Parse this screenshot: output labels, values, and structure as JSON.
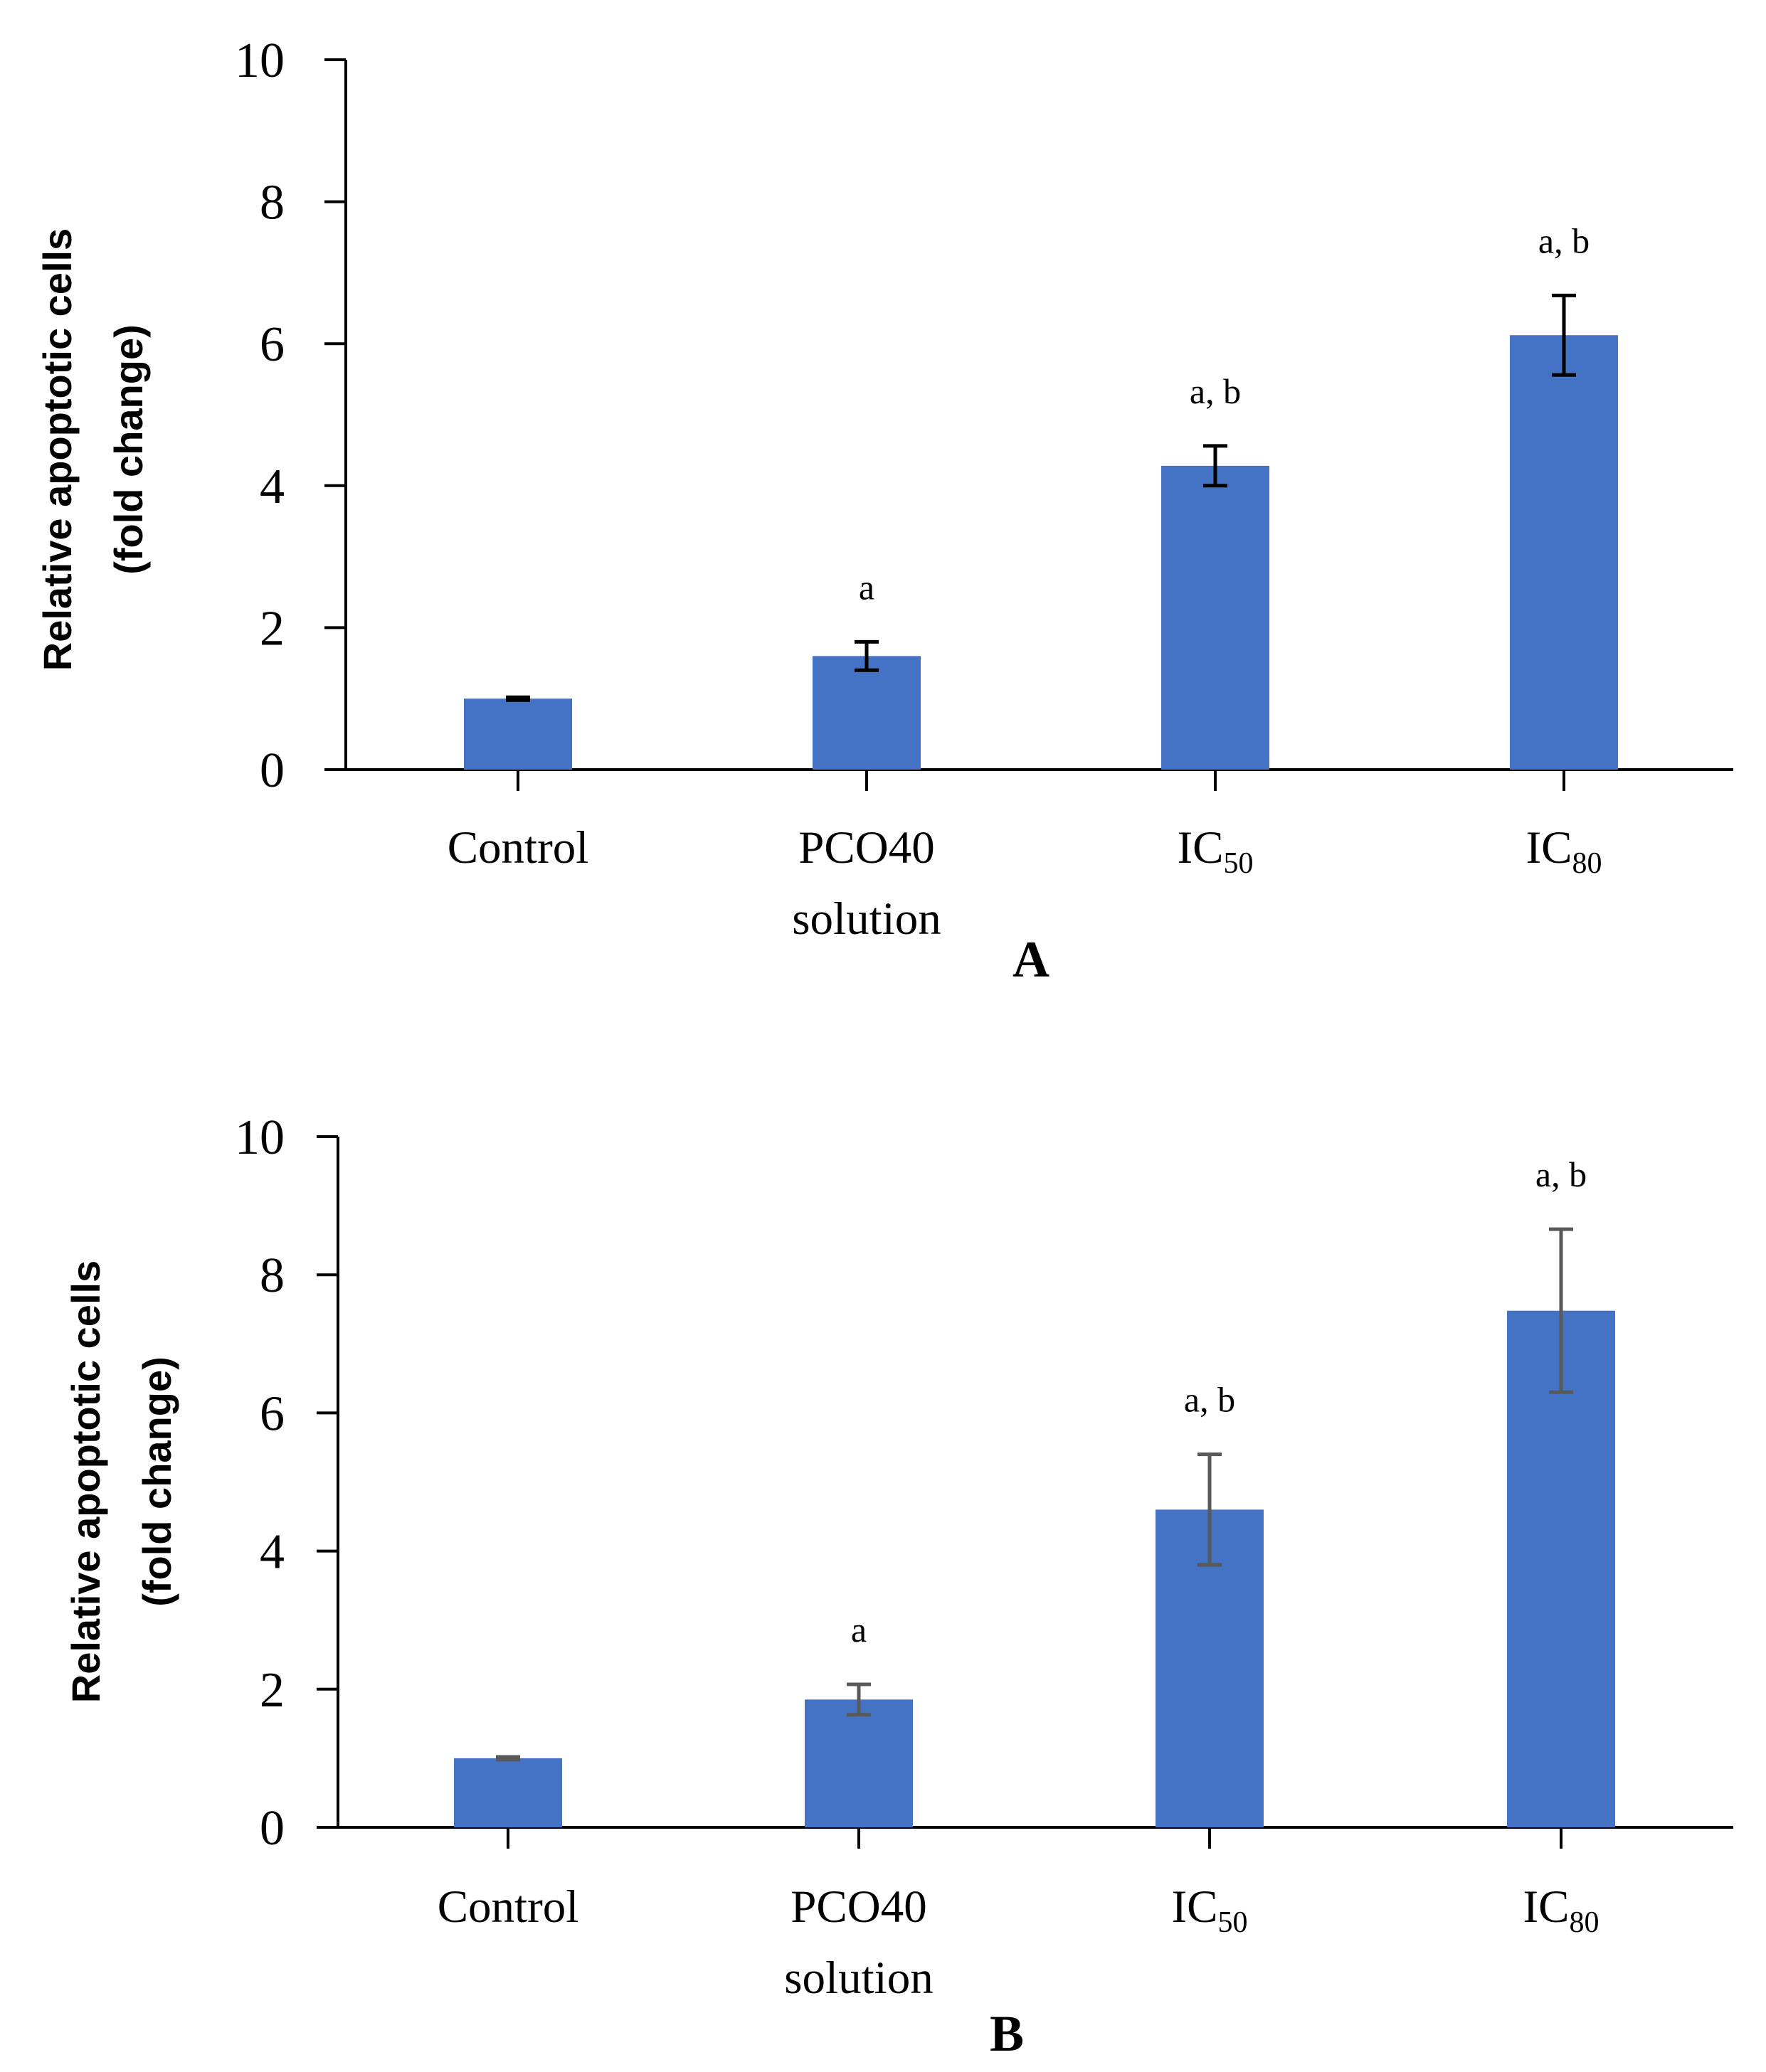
{
  "chart_data": [
    {
      "type": "bar",
      "panel_label": "A",
      "categories": [
        {
          "main": "Control",
          "sub": "",
          "line2": ""
        },
        {
          "main": "PCO40",
          "sub": "",
          "line2": "solution"
        },
        {
          "main": "IC",
          "sub": "50",
          "line2": ""
        },
        {
          "main": "IC",
          "sub": "80",
          "line2": ""
        }
      ],
      "values": [
        1.0,
        1.6,
        4.28,
        6.12
      ],
      "errors": [
        0.02,
        0.2,
        0.28,
        0.56
      ],
      "significance": [
        "",
        "a",
        "a, b",
        "a, b"
      ],
      "ylabel": [
        "Relative apoptotic cells",
        "(fold change)"
      ],
      "ylim": [
        0,
        10
      ],
      "yticks": [
        "0",
        "2",
        "4",
        "6",
        "8",
        "10"
      ],
      "bar_color": "#4472c4",
      "error_color": "#000000",
      "grid": false
    },
    {
      "type": "bar",
      "panel_label": "B",
      "categories": [
        {
          "main": "Control",
          "sub": "",
          "line2": ""
        },
        {
          "main": "PCO40",
          "sub": "",
          "line2": "solution"
        },
        {
          "main": "IC",
          "sub": "50",
          "line2": ""
        },
        {
          "main": "IC",
          "sub": "80",
          "line2": ""
        }
      ],
      "values": [
        1.0,
        1.85,
        4.6,
        7.48
      ],
      "errors": [
        0.02,
        0.22,
        0.8,
        1.18
      ],
      "significance": [
        "",
        "a",
        "a, b",
        "a, b"
      ],
      "ylabel": [
        "Relative apoptotic cells",
        "(fold change)"
      ],
      "ylim": [
        0,
        10
      ],
      "yticks": [
        "0",
        "2",
        "4",
        "6",
        "8",
        "10"
      ],
      "bar_color": "#4472c4",
      "error_color": "#595959",
      "grid": false
    }
  ]
}
